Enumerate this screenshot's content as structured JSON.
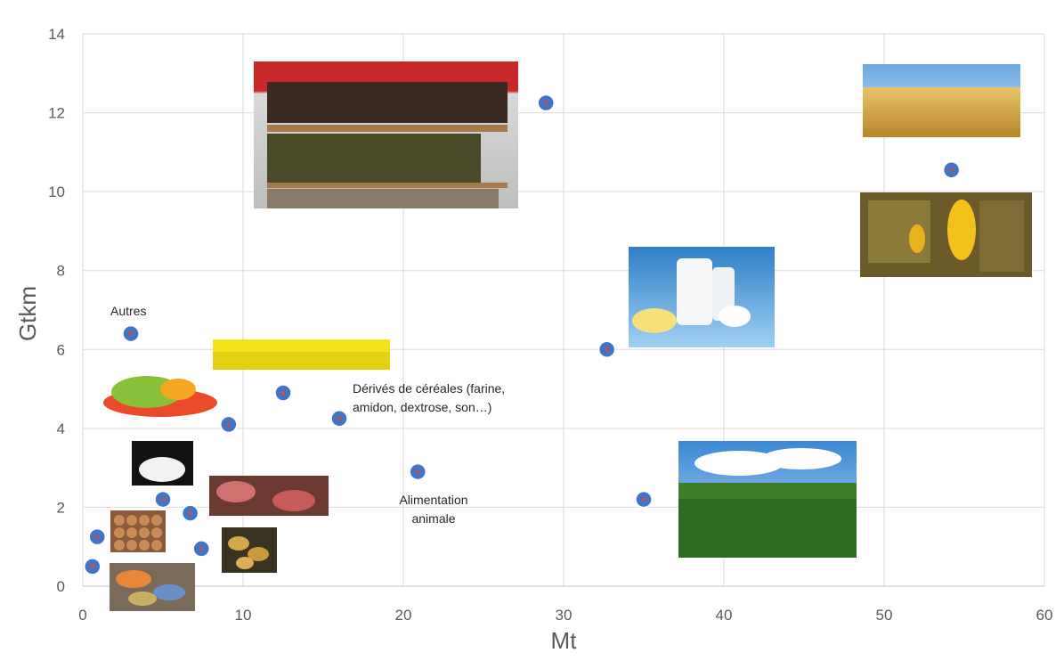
{
  "chart_data": {
    "type": "scatter",
    "xlabel": "Mt",
    "ylabel": "Gtkm",
    "xlim": [
      0,
      60
    ],
    "ylim": [
      0,
      14
    ],
    "xticks": [
      0,
      10,
      20,
      30,
      40,
      50,
      60
    ],
    "yticks": [
      0,
      2,
      4,
      6,
      8,
      10,
      12,
      14
    ],
    "grid": true,
    "colors": {
      "marker": "#4472C4",
      "marker_center": "#C0504D",
      "grid": "#D9D9D9",
      "text": "#595959"
    },
    "points": [
      {
        "x": 0.6,
        "y": 0.5,
        "picture": "vegetable-waste"
      },
      {
        "x": 0.9,
        "y": 1.25,
        "picture": "eggs"
      },
      {
        "x": 3.0,
        "y": 6.4,
        "label": "Autres"
      },
      {
        "x": 5.0,
        "y": 2.2,
        "picture": "sugar"
      },
      {
        "x": 6.7,
        "y": 1.85,
        "picture": "meat"
      },
      {
        "x": 7.4,
        "y": 0.95,
        "picture": "potatoes"
      },
      {
        "x": 9.1,
        "y": 4.1,
        "picture": "fruits-and-vegetables"
      },
      {
        "x": 12.5,
        "y": 4.9,
        "picture": "rapeseed"
      },
      {
        "x": 16.0,
        "y": 4.25,
        "label": "Dérivés de céréales (farine,\namidon, dextrose, son…)"
      },
      {
        "x": 20.9,
        "y": 2.9,
        "label": "Alimentation\nanimale"
      },
      {
        "x": 28.9,
        "y": 12.25,
        "picture": "wine-and-beverages"
      },
      {
        "x": 32.7,
        "y": 6.0,
        "picture": "dairy-products"
      },
      {
        "x": 35.0,
        "y": 2.2,
        "picture": "sugar-beet"
      },
      {
        "x": 54.2,
        "y": 10.55,
        "picture": "wheat-and-maize"
      }
    ],
    "annotations": [
      {
        "text": "Autres"
      },
      {
        "text": "Dérivés de céréales (farine,\namidon, dextrose, son…)"
      },
      {
        "text": "Alimentation\nanimale"
      }
    ]
  }
}
